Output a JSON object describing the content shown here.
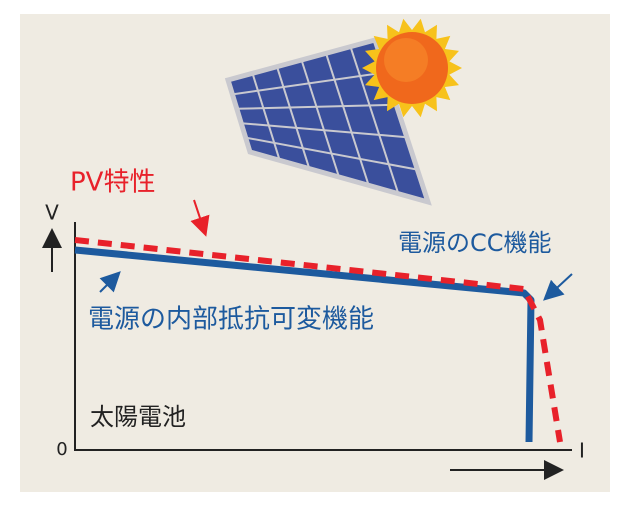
{
  "pv_label": "PV特性",
  "axis": {
    "y_label": "V",
    "origin": "0",
    "x_label": "I"
  },
  "cc_label": "電源のCC機能",
  "resistance_label": "電源の内部抵抗可変機能",
  "solar_cell_label": "太陽電池"
}
